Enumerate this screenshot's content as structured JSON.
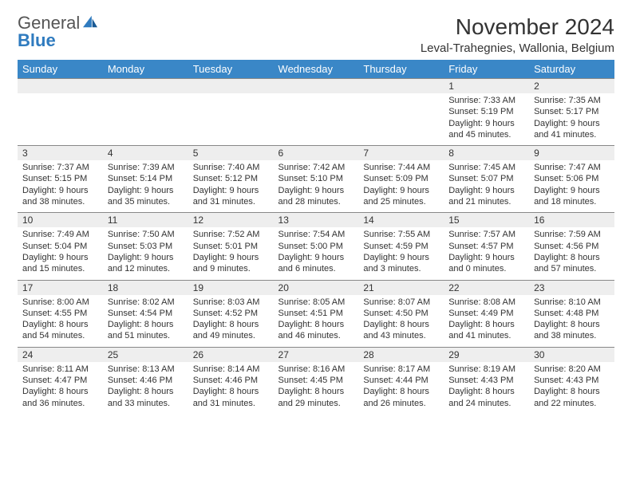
{
  "brand": {
    "name_part1": "General",
    "name_part2": "Blue"
  },
  "title": "November 2024",
  "location": "Leval-Trahegnies, Wallonia, Belgium",
  "colors": {
    "header_bg": "#3a87c7",
    "header_text": "#ffffff",
    "stripe_bg": "#eeeeee",
    "border": "#888888",
    "text": "#333333",
    "brand_gray": "#555555",
    "brand_blue": "#2f7bbf",
    "page_bg": "#ffffff"
  },
  "weekdays": [
    "Sunday",
    "Monday",
    "Tuesday",
    "Wednesday",
    "Thursday",
    "Friday",
    "Saturday"
  ],
  "weeks": [
    [
      null,
      null,
      null,
      null,
      null,
      {
        "n": "1",
        "sunrise": "7:33 AM",
        "sunset": "5:19 PM",
        "dl1": "Daylight: 9 hours",
        "dl2": "and 45 minutes."
      },
      {
        "n": "2",
        "sunrise": "7:35 AM",
        "sunset": "5:17 PM",
        "dl1": "Daylight: 9 hours",
        "dl2": "and 41 minutes."
      }
    ],
    [
      {
        "n": "3",
        "sunrise": "7:37 AM",
        "sunset": "5:15 PM",
        "dl1": "Daylight: 9 hours",
        "dl2": "and 38 minutes."
      },
      {
        "n": "4",
        "sunrise": "7:39 AM",
        "sunset": "5:14 PM",
        "dl1": "Daylight: 9 hours",
        "dl2": "and 35 minutes."
      },
      {
        "n": "5",
        "sunrise": "7:40 AM",
        "sunset": "5:12 PM",
        "dl1": "Daylight: 9 hours",
        "dl2": "and 31 minutes."
      },
      {
        "n": "6",
        "sunrise": "7:42 AM",
        "sunset": "5:10 PM",
        "dl1": "Daylight: 9 hours",
        "dl2": "and 28 minutes."
      },
      {
        "n": "7",
        "sunrise": "7:44 AM",
        "sunset": "5:09 PM",
        "dl1": "Daylight: 9 hours",
        "dl2": "and 25 minutes."
      },
      {
        "n": "8",
        "sunrise": "7:45 AM",
        "sunset": "5:07 PM",
        "dl1": "Daylight: 9 hours",
        "dl2": "and 21 minutes."
      },
      {
        "n": "9",
        "sunrise": "7:47 AM",
        "sunset": "5:06 PM",
        "dl1": "Daylight: 9 hours",
        "dl2": "and 18 minutes."
      }
    ],
    [
      {
        "n": "10",
        "sunrise": "7:49 AM",
        "sunset": "5:04 PM",
        "dl1": "Daylight: 9 hours",
        "dl2": "and 15 minutes."
      },
      {
        "n": "11",
        "sunrise": "7:50 AM",
        "sunset": "5:03 PM",
        "dl1": "Daylight: 9 hours",
        "dl2": "and 12 minutes."
      },
      {
        "n": "12",
        "sunrise": "7:52 AM",
        "sunset": "5:01 PM",
        "dl1": "Daylight: 9 hours",
        "dl2": "and 9 minutes."
      },
      {
        "n": "13",
        "sunrise": "7:54 AM",
        "sunset": "5:00 PM",
        "dl1": "Daylight: 9 hours",
        "dl2": "and 6 minutes."
      },
      {
        "n": "14",
        "sunrise": "7:55 AM",
        "sunset": "4:59 PM",
        "dl1": "Daylight: 9 hours",
        "dl2": "and 3 minutes."
      },
      {
        "n": "15",
        "sunrise": "7:57 AM",
        "sunset": "4:57 PM",
        "dl1": "Daylight: 9 hours",
        "dl2": "and 0 minutes."
      },
      {
        "n": "16",
        "sunrise": "7:59 AM",
        "sunset": "4:56 PM",
        "dl1": "Daylight: 8 hours",
        "dl2": "and 57 minutes."
      }
    ],
    [
      {
        "n": "17",
        "sunrise": "8:00 AM",
        "sunset": "4:55 PM",
        "dl1": "Daylight: 8 hours",
        "dl2": "and 54 minutes."
      },
      {
        "n": "18",
        "sunrise": "8:02 AM",
        "sunset": "4:54 PM",
        "dl1": "Daylight: 8 hours",
        "dl2": "and 51 minutes."
      },
      {
        "n": "19",
        "sunrise": "8:03 AM",
        "sunset": "4:52 PM",
        "dl1": "Daylight: 8 hours",
        "dl2": "and 49 minutes."
      },
      {
        "n": "20",
        "sunrise": "8:05 AM",
        "sunset": "4:51 PM",
        "dl1": "Daylight: 8 hours",
        "dl2": "and 46 minutes."
      },
      {
        "n": "21",
        "sunrise": "8:07 AM",
        "sunset": "4:50 PM",
        "dl1": "Daylight: 8 hours",
        "dl2": "and 43 minutes."
      },
      {
        "n": "22",
        "sunrise": "8:08 AM",
        "sunset": "4:49 PM",
        "dl1": "Daylight: 8 hours",
        "dl2": "and 41 minutes."
      },
      {
        "n": "23",
        "sunrise": "8:10 AM",
        "sunset": "4:48 PM",
        "dl1": "Daylight: 8 hours",
        "dl2": "and 38 minutes."
      }
    ],
    [
      {
        "n": "24",
        "sunrise": "8:11 AM",
        "sunset": "4:47 PM",
        "dl1": "Daylight: 8 hours",
        "dl2": "and 36 minutes."
      },
      {
        "n": "25",
        "sunrise": "8:13 AM",
        "sunset": "4:46 PM",
        "dl1": "Daylight: 8 hours",
        "dl2": "and 33 minutes."
      },
      {
        "n": "26",
        "sunrise": "8:14 AM",
        "sunset": "4:46 PM",
        "dl1": "Daylight: 8 hours",
        "dl2": "and 31 minutes."
      },
      {
        "n": "27",
        "sunrise": "8:16 AM",
        "sunset": "4:45 PM",
        "dl1": "Daylight: 8 hours",
        "dl2": "and 29 minutes."
      },
      {
        "n": "28",
        "sunrise": "8:17 AM",
        "sunset": "4:44 PM",
        "dl1": "Daylight: 8 hours",
        "dl2": "and 26 minutes."
      },
      {
        "n": "29",
        "sunrise": "8:19 AM",
        "sunset": "4:43 PM",
        "dl1": "Daylight: 8 hours",
        "dl2": "and 24 minutes."
      },
      {
        "n": "30",
        "sunrise": "8:20 AM",
        "sunset": "4:43 PM",
        "dl1": "Daylight: 8 hours",
        "dl2": "and 22 minutes."
      }
    ]
  ],
  "labels": {
    "sunrise_prefix": "Sunrise: ",
    "sunset_prefix": "Sunset: "
  }
}
